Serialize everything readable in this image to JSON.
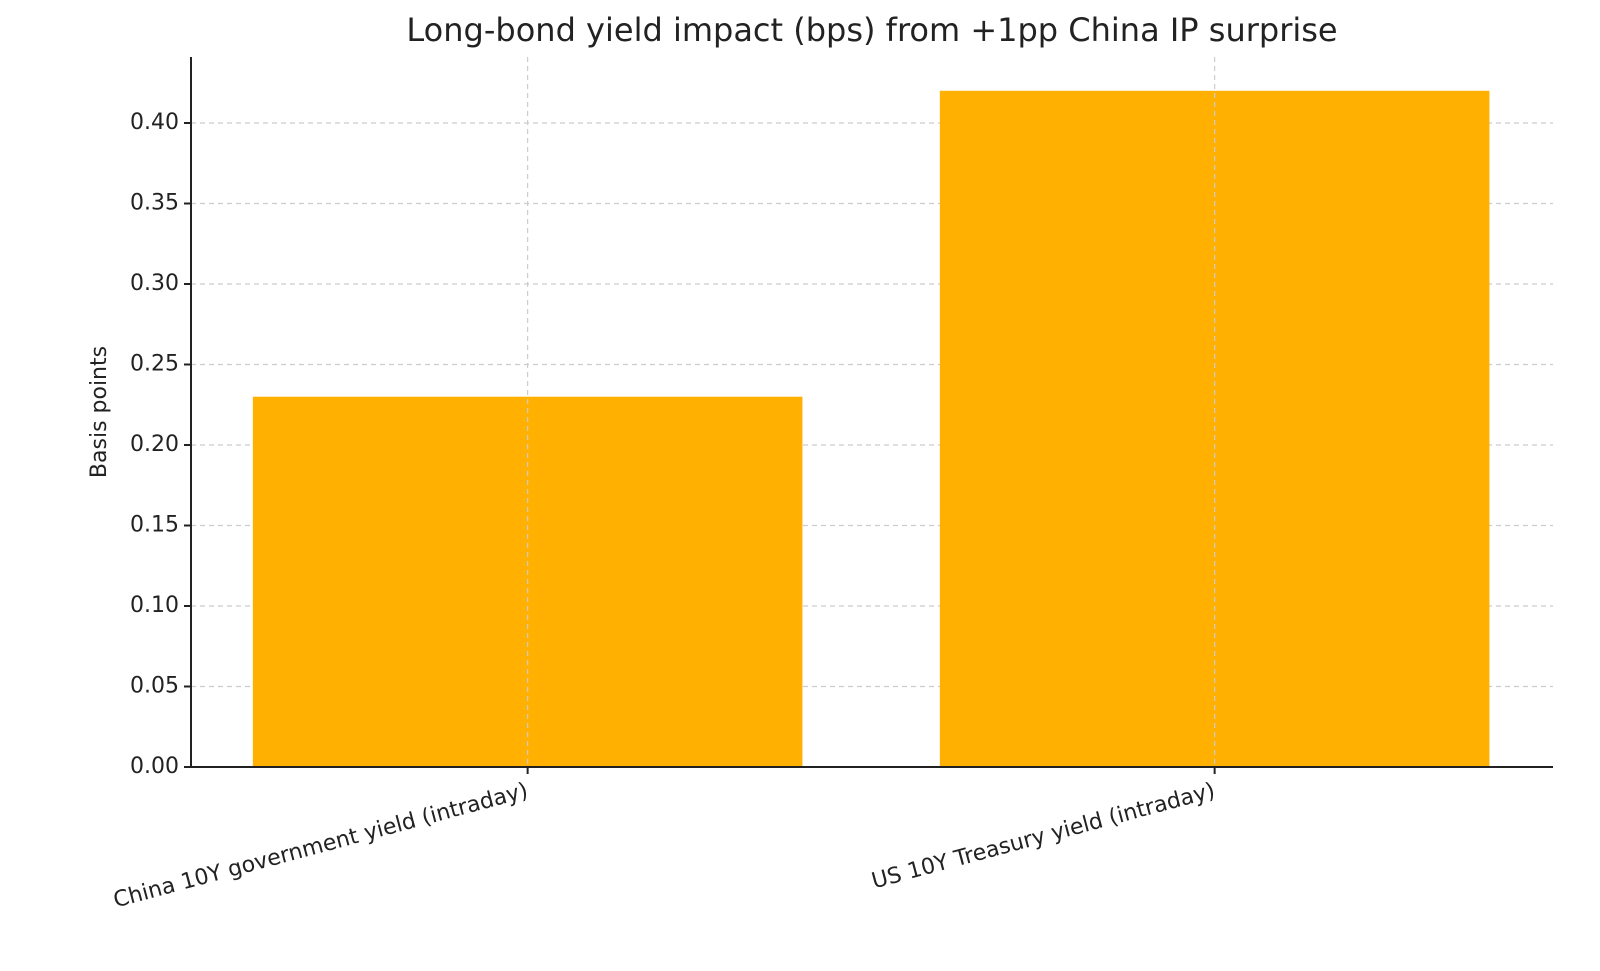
{
  "chart_data": {
    "type": "bar",
    "title": "Long-bond yield impact (bps) from +1pp China IP surprise",
    "y_label": "Basis points",
    "categories": [
      "China 10Y government yield (intraday)",
      "US 10Y Treasury yield (intraday)"
    ],
    "values": [
      0.23,
      0.42
    ],
    "color": "#ffb000",
    "ylim": [
      0,
      0.441
    ],
    "yticks": [
      {
        "value": 0,
        "label": "0.00"
      },
      {
        "value": 0.05,
        "label": "0.05"
      },
      {
        "value": 0.1,
        "label": "0.10"
      },
      {
        "value": 0.15,
        "label": "0.15"
      },
      {
        "value": 0.2,
        "label": "0.20"
      },
      {
        "value": 0.25,
        "label": "0.25"
      },
      {
        "value": 0.3,
        "label": "0.30"
      },
      {
        "value": 0.35,
        "label": "0.35"
      },
      {
        "value": 0.4,
        "label": "0.40"
      }
    ],
    "grid": true
  }
}
